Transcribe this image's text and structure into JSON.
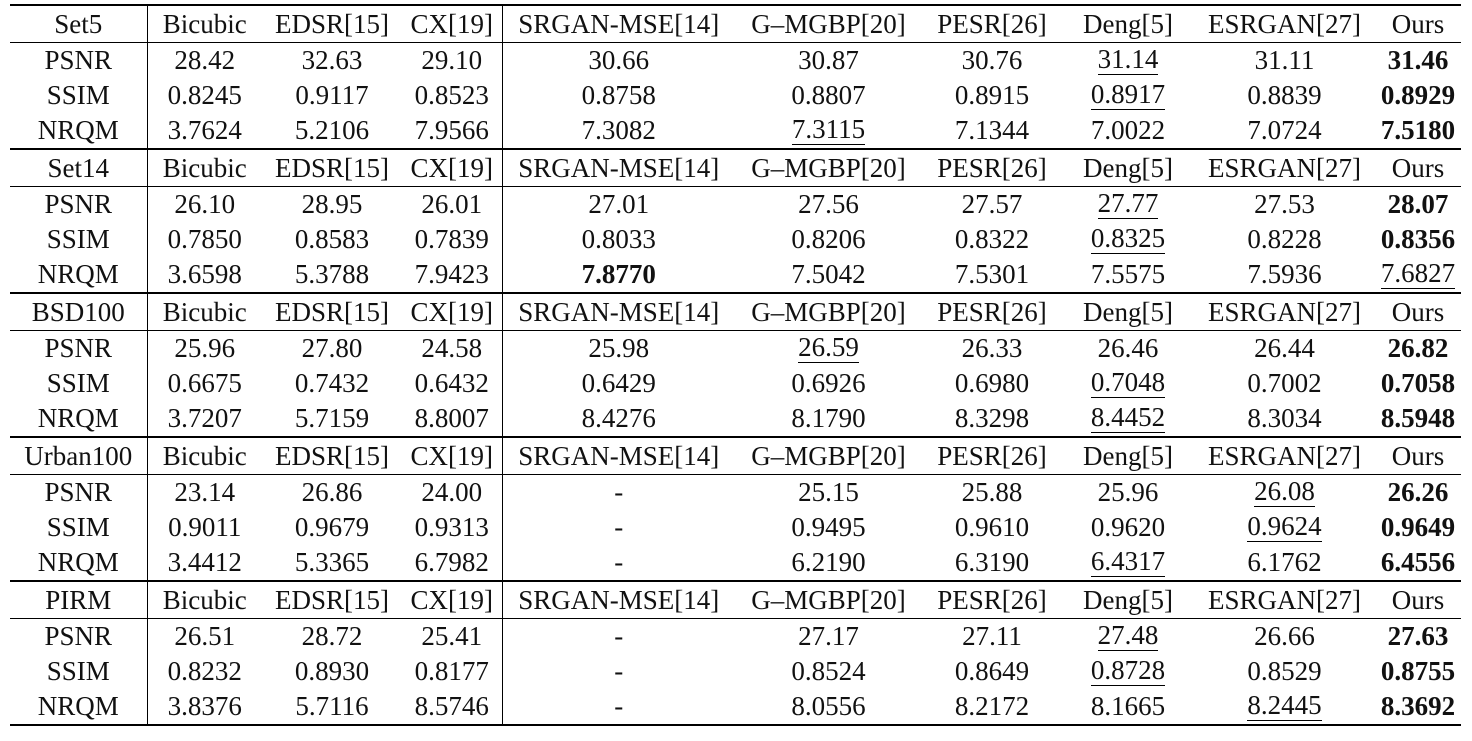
{
  "columns": [
    "Bicubic",
    "EDSR[15]",
    "CX[19]",
    "SRGAN-MSE[14]",
    "G–MGBP[20]",
    "PESR[26]",
    "Deng[5]",
    "ESRGAN[27]",
    "Ours"
  ],
  "blocks": [
    {
      "dataset": "Set5",
      "rows": [
        {
          "metric": "PSNR",
          "values": [
            "28.42",
            "32.63",
            "29.10",
            "30.66",
            "30.87",
            "30.76",
            "31.14",
            "31.11",
            "31.46"
          ],
          "best": 8,
          "second": 6
        },
        {
          "metric": "SSIM",
          "values": [
            "0.8245",
            "0.9117",
            "0.8523",
            "0.8758",
            "0.8807",
            "0.8915",
            "0.8917",
            "0.8839",
            "0.8929"
          ],
          "best": 8,
          "second": 6
        },
        {
          "metric": "NRQM",
          "values": [
            "3.7624",
            "5.2106",
            "7.9566",
            "7.3082",
            "7.3115",
            "7.1344",
            "7.0022",
            "7.0724",
            "7.5180"
          ],
          "best": 8,
          "second": 4
        }
      ]
    },
    {
      "dataset": "Set14",
      "rows": [
        {
          "metric": "PSNR",
          "values": [
            "26.10",
            "28.95",
            "26.01",
            "27.01",
            "27.56",
            "27.57",
            "27.77",
            "27.53",
            "28.07"
          ],
          "best": 8,
          "second": 6
        },
        {
          "metric": "SSIM",
          "values": [
            "0.7850",
            "0.8583",
            "0.7839",
            "0.8033",
            "0.8206",
            "0.8322",
            "0.8325",
            "0.8228",
            "0.8356"
          ],
          "best": 8,
          "second": 6
        },
        {
          "metric": "NRQM",
          "values": [
            "3.6598",
            "5.3788",
            "7.9423",
            "7.8770",
            "7.5042",
            "7.5301",
            "7.5575",
            "7.5936",
            "7.6827"
          ],
          "best": 3,
          "second": 8
        }
      ]
    },
    {
      "dataset": "BSD100",
      "rows": [
        {
          "metric": "PSNR",
          "values": [
            "25.96",
            "27.80",
            "24.58",
            "25.98",
            "26.59",
            "26.33",
            "26.46",
            "26.44",
            "26.82"
          ],
          "best": 8,
          "second": 4
        },
        {
          "metric": "SSIM",
          "values": [
            "0.6675",
            "0.7432",
            "0.6432",
            "0.6429",
            "0.6926",
            "0.6980",
            "0.7048",
            "0.7002",
            "0.7058"
          ],
          "best": 8,
          "second": 6
        },
        {
          "metric": "NRQM",
          "values": [
            "3.7207",
            "5.7159",
            "8.8007",
            "8.4276",
            "8.1790",
            "8.3298",
            "8.4452",
            "8.3034",
            "8.5948"
          ],
          "best": 8,
          "second": 6
        }
      ]
    },
    {
      "dataset": "Urban100",
      "rows": [
        {
          "metric": "PSNR",
          "values": [
            "23.14",
            "26.86",
            "24.00",
            "-",
            "25.15",
            "25.88",
            "25.96",
            "26.08",
            "26.26"
          ],
          "best": 8,
          "second": 7
        },
        {
          "metric": "SSIM",
          "values": [
            "0.9011",
            "0.9679",
            "0.9313",
            "-",
            "0.9495",
            "0.9610",
            "0.9620",
            "0.9624",
            "0.9649"
          ],
          "best": 8,
          "second": 7
        },
        {
          "metric": "NRQM",
          "values": [
            "3.4412",
            "5.3365",
            "6.7982",
            "-",
            "6.2190",
            "6.3190",
            "6.4317",
            "6.1762",
            "6.4556"
          ],
          "best": 8,
          "second": 6
        }
      ]
    },
    {
      "dataset": "PIRM",
      "rows": [
        {
          "metric": "PSNR",
          "values": [
            "26.51",
            "28.72",
            "25.41",
            "-",
            "27.17",
            "27.11",
            "27.48",
            "26.66",
            "27.63"
          ],
          "best": 8,
          "second": 6
        },
        {
          "metric": "SSIM",
          "values": [
            "0.8232",
            "0.8930",
            "0.8177",
            "-",
            "0.8524",
            "0.8649",
            "0.8728",
            "0.8529",
            "0.8755"
          ],
          "best": 8,
          "second": 6
        },
        {
          "metric": "NRQM",
          "values": [
            "3.8376",
            "5.7116",
            "8.5746",
            "-",
            "8.0556",
            "8.2172",
            "8.1665",
            "8.2445",
            "8.3692"
          ],
          "best": 8,
          "second": 7
        }
      ]
    }
  ]
}
